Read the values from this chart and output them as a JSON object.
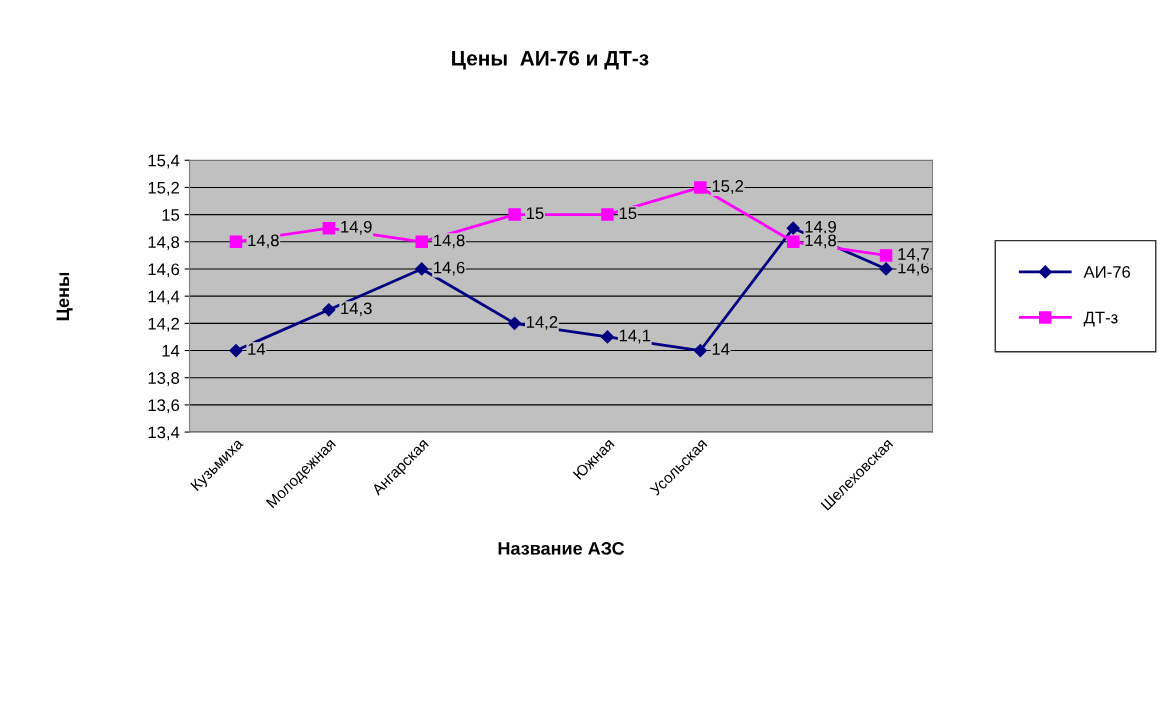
{
  "chart_data": {
    "type": "line",
    "title": "Цены  АИ-76 и ДТ-з",
    "xlabel": "Название АЗС",
    "ylabel": "Цены",
    "categories": [
      "Кузьмиха",
      "Молодежная",
      "Ангарская",
      null,
      "Южная",
      "Усольская",
      null,
      "Шелеховская"
    ],
    "series": [
      {
        "name": "АИ-76",
        "color": "#000080",
        "marker": "diamond",
        "values": [
          14,
          14.3,
          14.6,
          14.2,
          14.1,
          14,
          14.9,
          14.6
        ],
        "value_labels": [
          "14",
          "14,3",
          "14,6",
          "14,2",
          "14,1",
          "14",
          "14,9",
          "14,6"
        ]
      },
      {
        "name": "ДТ-з",
        "color": "#ff00ff",
        "marker": "square",
        "values": [
          14.8,
          14.9,
          14.8,
          15,
          15,
          15.2,
          14.8,
          14.7
        ],
        "value_labels": [
          "14,8",
          "14,9",
          "14,8",
          "15",
          "15",
          "15,2",
          "14,8",
          "14,7"
        ]
      }
    ],
    "ylim": [
      13.4,
      15.4
    ],
    "yticks": [
      {
        "value": 13.4,
        "label": "13,4"
      },
      {
        "value": 13.6,
        "label": "13,6"
      },
      {
        "value": 13.8,
        "label": "13,8"
      },
      {
        "value": 14,
        "label": "14"
      },
      {
        "value": 14.2,
        "label": "14,2"
      },
      {
        "value": 14.4,
        "label": "14,4"
      },
      {
        "value": 14.6,
        "label": "14,6"
      },
      {
        "value": 14.8,
        "label": "14,8"
      },
      {
        "value": 15,
        "label": "15"
      },
      {
        "value": 15.2,
        "label": "15,2"
      },
      {
        "value": 15.4,
        "label": "15,4"
      }
    ],
    "grid": "y",
    "legend": "right"
  }
}
